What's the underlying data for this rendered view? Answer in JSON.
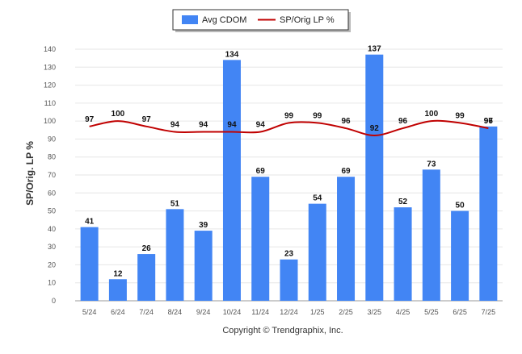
{
  "legend": {
    "bar_series_name": "Avg CDOM",
    "line_series_name": "SP/Orig LP %"
  },
  "credit": "Copyright © Trendgraphix, Inc.",
  "colors": {
    "bar": "#4285f4",
    "line": "#c00000",
    "grid": "#e6e6e6"
  },
  "chart_data": {
    "type": "bar",
    "categories": [
      "5/24",
      "6/24",
      "7/24",
      "8/24",
      "9/24",
      "10/24",
      "11/24",
      "12/24",
      "1/25",
      "2/25",
      "3/25",
      "4/25",
      "5/25",
      "6/25",
      "7/25"
    ],
    "series": [
      {
        "name": "Avg CDOM",
        "type": "bar",
        "values": [
          41,
          12,
          26,
          51,
          39,
          134,
          69,
          23,
          54,
          69,
          137,
          52,
          73,
          50,
          97
        ]
      },
      {
        "name": "SP/Orig LP %",
        "type": "line",
        "values": [
          97,
          100,
          97,
          94,
          94,
          94,
          94,
          99,
          99,
          96,
          92,
          96,
          100,
          99,
          96
        ]
      }
    ],
    "title": "",
    "xlabel": "",
    "ylabel": "SP/Orig. LP %",
    "ylim": [
      0,
      140
    ],
    "yticks": [
      0,
      10,
      20,
      30,
      40,
      50,
      60,
      70,
      80,
      90,
      100,
      110,
      120,
      130,
      140
    ],
    "grid": true,
    "legend_position": "top-center"
  }
}
